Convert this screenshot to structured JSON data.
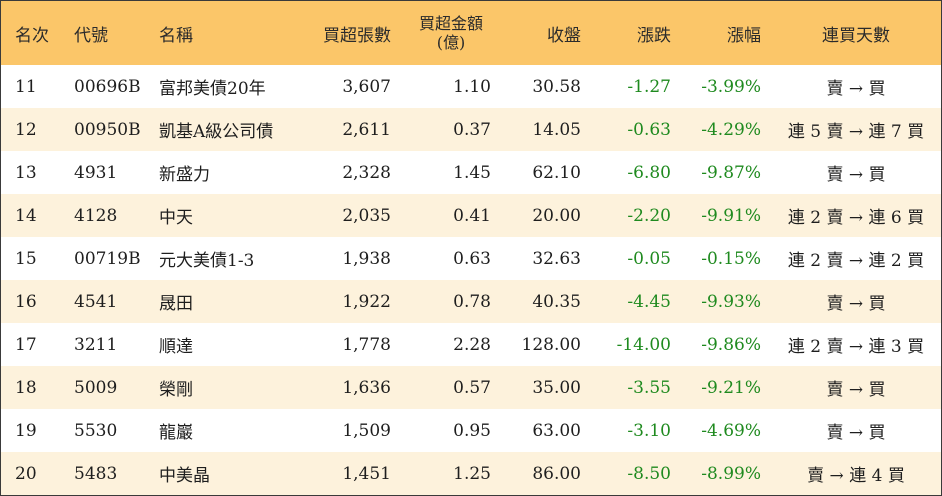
{
  "headers": {
    "rank": "名次",
    "code": "代號",
    "name": "名稱",
    "net_volume": "買超張數",
    "net_amount_line1": "買超金額",
    "net_amount_line2": "(億)",
    "close": "收盤",
    "change": "漲跌",
    "change_pct": "漲幅",
    "streak": "連買天數"
  },
  "rows": [
    {
      "rank": "11",
      "code": "00696B",
      "name": "富邦美債20年",
      "net_volume": "3,607",
      "net_amount": "1.10",
      "close": "30.58",
      "change": "-1.27",
      "change_pct": "-3.99%",
      "streak": "賣 → 買"
    },
    {
      "rank": "12",
      "code": "00950B",
      "name": "凱基A級公司債",
      "net_volume": "2,611",
      "net_amount": "0.37",
      "close": "14.05",
      "change": "-0.63",
      "change_pct": "-4.29%",
      "streak": "連 5 賣 → 連 7 買"
    },
    {
      "rank": "13",
      "code": "4931",
      "name": "新盛力",
      "net_volume": "2,328",
      "net_amount": "1.45",
      "close": "62.10",
      "change": "-6.80",
      "change_pct": "-9.87%",
      "streak": "賣 → 買"
    },
    {
      "rank": "14",
      "code": "4128",
      "name": "中天",
      "net_volume": "2,035",
      "net_amount": "0.41",
      "close": "20.00",
      "change": "-2.20",
      "change_pct": "-9.91%",
      "streak": "連 2 賣 → 連 6 買"
    },
    {
      "rank": "15",
      "code": "00719B",
      "name": "元大美債1-3",
      "net_volume": "1,938",
      "net_amount": "0.63",
      "close": "32.63",
      "change": "-0.05",
      "change_pct": "-0.15%",
      "streak": "連 2 賣 → 連 2 買"
    },
    {
      "rank": "16",
      "code": "4541",
      "name": "晟田",
      "net_volume": "1,922",
      "net_amount": "0.78",
      "close": "40.35",
      "change": "-4.45",
      "change_pct": "-9.93%",
      "streak": "賣 → 買"
    },
    {
      "rank": "17",
      "code": "3211",
      "name": "順達",
      "net_volume": "1,778",
      "net_amount": "2.28",
      "close": "128.00",
      "change": "-14.00",
      "change_pct": "-9.86%",
      "streak": "連 2 賣 → 連 3 買"
    },
    {
      "rank": "18",
      "code": "5009",
      "name": "榮剛",
      "net_volume": "1,636",
      "net_amount": "0.57",
      "close": "35.00",
      "change": "-3.55",
      "change_pct": "-9.21%",
      "streak": "賣 → 買"
    },
    {
      "rank": "19",
      "code": "5530",
      "name": "龍巖",
      "net_volume": "1,509",
      "net_amount": "0.95",
      "close": "63.00",
      "change": "-3.10",
      "change_pct": "-4.69%",
      "streak": "賣 → 買"
    },
    {
      "rank": "20",
      "code": "5483",
      "name": "中美晶",
      "net_volume": "1,451",
      "net_amount": "1.25",
      "close": "86.00",
      "change": "-8.50",
      "change_pct": "-8.99%",
      "streak": "賣 → 連 4 買"
    }
  ],
  "colors": {
    "header_bg": "#fbc669",
    "alt_row_bg": "#fdf2dc",
    "negative": "#1f8a1f"
  }
}
